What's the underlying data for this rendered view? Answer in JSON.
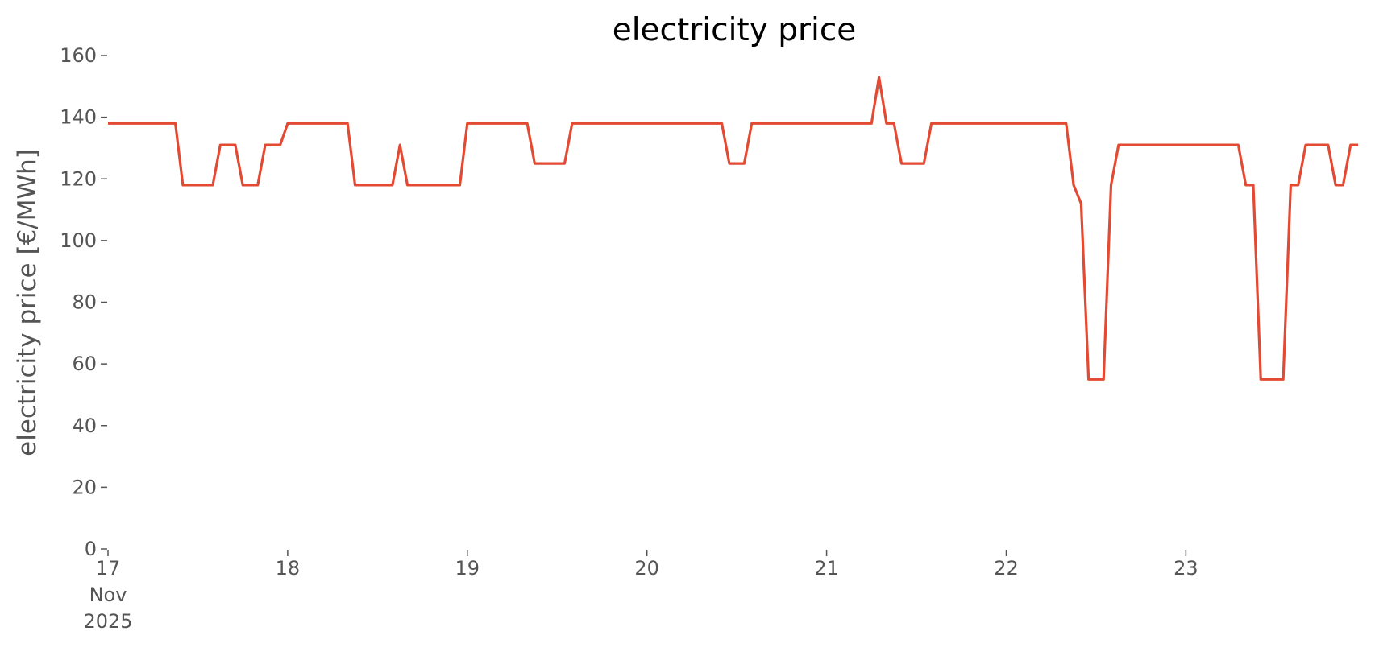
{
  "chart_data": {
    "type": "line",
    "title": "electricity price",
    "ylabel": "electricity price [€/MWh]",
    "x": [
      "2025-11-17T00:00",
      "2025-11-17T09:00",
      "2025-11-17T10:00",
      "2025-11-17T14:00",
      "2025-11-17T15:00",
      "2025-11-17T17:00",
      "2025-11-17T18:00",
      "2025-11-17T20:00",
      "2025-11-17T21:00",
      "2025-11-17T23:00",
      "2025-11-18T00:00",
      "2025-11-18T08:00",
      "2025-11-18T09:00",
      "2025-11-18T14:00",
      "2025-11-18T15:00",
      "2025-11-18T16:00",
      "2025-11-18T23:00",
      "2025-11-19T00:00",
      "2025-11-19T08:00",
      "2025-11-19T09:00",
      "2025-11-19T13:00",
      "2025-11-19T14:00",
      "2025-11-20T10:00",
      "2025-11-20T11:00",
      "2025-11-20T13:00",
      "2025-11-20T14:00",
      "2025-11-21T06:00",
      "2025-11-21T07:00",
      "2025-11-21T08:00",
      "2025-11-21T09:00",
      "2025-11-21T10:00",
      "2025-11-21T13:00",
      "2025-11-21T14:00",
      "2025-11-22T08:00",
      "2025-11-22T09:00",
      "2025-11-22T10:00",
      "2025-11-22T11:00",
      "2025-11-22T13:00",
      "2025-11-22T14:00",
      "2025-11-22T15:00",
      "2025-11-23T07:00",
      "2025-11-23T08:00",
      "2025-11-23T09:00",
      "2025-11-23T10:00",
      "2025-11-23T13:00",
      "2025-11-23T14:00",
      "2025-11-23T15:00",
      "2025-11-23T16:00",
      "2025-11-23T19:00",
      "2025-11-23T20:00",
      "2025-11-23T21:00",
      "2025-11-23T22:00",
      "2025-11-23T23:00"
    ],
    "series": [
      {
        "name": "electricity price",
        "color": "#e24a33",
        "values": [
          138,
          138,
          118,
          118,
          131,
          131,
          118,
          118,
          131,
          131,
          138,
          138,
          118,
          118,
          131,
          118,
          118,
          138,
          138,
          125,
          125,
          138,
          138,
          125,
          125,
          138,
          138,
          153,
          138,
          138,
          125,
          125,
          138,
          138,
          118,
          112,
          55,
          55,
          118,
          131,
          131,
          118,
          118,
          55,
          55,
          118,
          118,
          131,
          131,
          118,
          118,
          131,
          131
        ]
      }
    ],
    "xlim": [
      "2025-11-17T00:00",
      "2025-11-23T23:00"
    ],
    "xticks": [
      {
        "value": "2025-11-17T00:00",
        "label": "17\nNov\n2025"
      },
      {
        "value": "2025-11-18T00:00",
        "label": "18"
      },
      {
        "value": "2025-11-19T00:00",
        "label": "19"
      },
      {
        "value": "2025-11-20T00:00",
        "label": "20"
      },
      {
        "value": "2025-11-21T00:00",
        "label": "21"
      },
      {
        "value": "2025-11-22T00:00",
        "label": "22"
      },
      {
        "value": "2025-11-23T00:00",
        "label": "23"
      }
    ],
    "ylim": [
      0,
      160
    ],
    "yticks": [
      0,
      20,
      40,
      60,
      80,
      100,
      120,
      140,
      160
    ],
    "grid": false
  }
}
